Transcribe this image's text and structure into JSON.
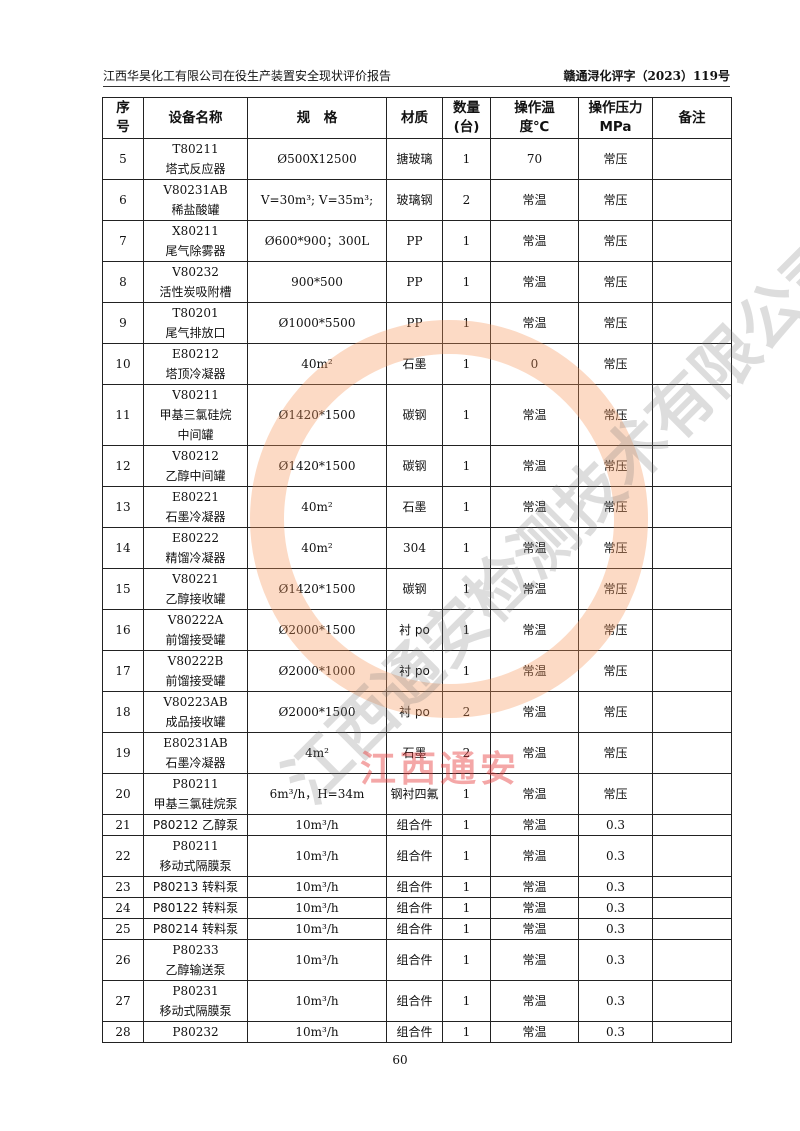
{
  "header": {
    "left": "江西华昊化工有限公司在役生产装置安全现状评价报告",
    "right": "赣通浔化评字（2023）119号"
  },
  "columns": [
    "序号",
    "设备名称",
    "规 格",
    "材质",
    "数量(台)",
    "操作温度℃",
    "操作压力MPa",
    "备注"
  ],
  "column_lines": [
    [
      "序",
      "号"
    ],
    [
      "设备名称"
    ],
    [
      "规　格"
    ],
    [
      "材质"
    ],
    [
      "数量",
      "(台)"
    ],
    [
      "操作温度",
      "℃"
    ],
    [
      "操作压力",
      "MPa"
    ],
    [
      "备注"
    ]
  ],
  "rows": [
    {
      "no": "5",
      "name": [
        "T80211",
        "塔式反应器"
      ],
      "spec": "Ø500X12500",
      "mat": "搪玻璃",
      "qty": "1",
      "temp": "70",
      "press": "常压",
      "note": ""
    },
    {
      "no": "6",
      "name": [
        "V80231AB",
        "稀盐酸罐"
      ],
      "spec": "V=30m³; V=35m³;",
      "mat": "玻璃钢",
      "qty": "2",
      "temp": "常温",
      "press": "常压",
      "note": ""
    },
    {
      "no": "7",
      "name": [
        "X80211",
        "尾气除雾器"
      ],
      "spec": "Ø600*900；300L",
      "mat": "PP",
      "qty": "1",
      "temp": "常温",
      "press": "常压",
      "note": ""
    },
    {
      "no": "8",
      "name": [
        "V80232",
        "活性炭吸附槽"
      ],
      "spec": "900*500",
      "mat": "PP",
      "qty": "1",
      "temp": "常温",
      "press": "常压",
      "note": ""
    },
    {
      "no": "9",
      "name": [
        "T80201",
        "尾气排放口"
      ],
      "spec": "Ø1000*5500",
      "mat": "PP",
      "qty": "1",
      "temp": "常温",
      "press": "常压",
      "note": ""
    },
    {
      "no": "10",
      "name": [
        "E80212",
        "塔顶冷凝器"
      ],
      "spec": "40m²",
      "mat": "石墨",
      "qty": "1",
      "temp": "0",
      "press": "常压",
      "note": ""
    },
    {
      "no": "11",
      "name": [
        "V80211",
        "甲基三氯硅烷",
        "中间罐"
      ],
      "spec": "Ø1420*1500",
      "mat": "碳钢",
      "qty": "1",
      "temp": "常温",
      "press": "常压",
      "note": ""
    },
    {
      "no": "12",
      "name": [
        "V80212",
        "乙醇中间罐"
      ],
      "spec": "Ø1420*1500",
      "mat": "碳钢",
      "qty": "1",
      "temp": "常温",
      "press": "常压",
      "note": ""
    },
    {
      "no": "13",
      "name": [
        "E80221",
        "石墨冷凝器"
      ],
      "spec": "40m²",
      "mat": "石墨",
      "qty": "1",
      "temp": "常温",
      "press": "常压",
      "note": ""
    },
    {
      "no": "14",
      "name": [
        "E80222",
        "精馏冷凝器"
      ],
      "spec": "40m²",
      "mat": "304",
      "qty": "1",
      "temp": "常温",
      "press": "常压",
      "note": ""
    },
    {
      "no": "15",
      "name": [
        "V80221",
        "乙醇接收罐"
      ],
      "spec": "Ø1420*1500",
      "mat": "碳钢",
      "qty": "1",
      "temp": "常温",
      "press": "常压",
      "note": ""
    },
    {
      "no": "16",
      "name": [
        "V80222A",
        "前馏接受罐"
      ],
      "spec": "Ø2000*1500",
      "mat": "衬 po",
      "qty": "1",
      "temp": "常温",
      "press": "常压",
      "note": ""
    },
    {
      "no": "17",
      "name": [
        "V80222B",
        "前馏接受罐"
      ],
      "spec": "Ø2000*1000",
      "mat": "衬 po",
      "qty": "1",
      "temp": "常温",
      "press": "常压",
      "note": ""
    },
    {
      "no": "18",
      "name": [
        "V80223AB",
        "成品接收罐"
      ],
      "spec": "Ø2000*1500",
      "mat": "衬 po",
      "qty": "2",
      "temp": "常温",
      "press": "常压",
      "note": ""
    },
    {
      "no": "19",
      "name": [
        "E80231AB",
        "石墨冷凝器"
      ],
      "spec": "4m²",
      "mat": "石墨",
      "qty": "2",
      "temp": "常温",
      "press": "常压",
      "note": ""
    },
    {
      "no": "20",
      "name": [
        "P80211",
        "甲基三氯硅烷泵"
      ],
      "spec": "6m³/h，H=34m",
      "mat": "钢衬四氟",
      "qty": "1",
      "temp": "常温",
      "press": "常压",
      "note": ""
    },
    {
      "no": "21",
      "name": [
        "P80212 乙醇泵"
      ],
      "spec": "10m³/h",
      "mat": "组合件",
      "qty": "1",
      "temp": "常温",
      "press": "0.3",
      "note": ""
    },
    {
      "no": "22",
      "name": [
        "P80211",
        "移动式隔膜泵"
      ],
      "spec": "10m³/h",
      "mat": "组合件",
      "qty": "1",
      "temp": "常温",
      "press": "0.3",
      "note": ""
    },
    {
      "no": "23",
      "name": [
        "P80213 转料泵"
      ],
      "spec": "10m³/h",
      "mat": "组合件",
      "qty": "1",
      "temp": "常温",
      "press": "0.3",
      "note": ""
    },
    {
      "no": "24",
      "name": [
        "P80122 转料泵"
      ],
      "spec": "10m³/h",
      "mat": "组合件",
      "qty": "1",
      "temp": "常温",
      "press": "0.3",
      "note": ""
    },
    {
      "no": "25",
      "name": [
        "P80214 转料泵"
      ],
      "spec": "10m³/h",
      "mat": "组合件",
      "qty": "1",
      "temp": "常温",
      "press": "0.3",
      "note": ""
    },
    {
      "no": "26",
      "name": [
        "P80233",
        "乙醇输送泵"
      ],
      "spec": "10m³/h",
      "mat": "组合件",
      "qty": "1",
      "temp": "常温",
      "press": "0.3",
      "note": ""
    },
    {
      "no": "27",
      "name": [
        "P80231",
        "移动式隔膜泵"
      ],
      "spec": "10m³/h",
      "mat": "组合件",
      "qty": "1",
      "temp": "常温",
      "press": "0.3",
      "note": ""
    },
    {
      "no": "28",
      "name": [
        "P80232"
      ],
      "spec": "10m³/h",
      "mat": "组合件",
      "qty": "1",
      "temp": "常温",
      "press": "0.3",
      "note": ""
    }
  ],
  "watermark": {
    "text": "江西通安",
    "diag": "江西通安检测技术有限公司",
    "colors": {
      "ring": "#f5965a",
      "text": "#e63c3c"
    }
  },
  "footer": {
    "page": "60"
  }
}
